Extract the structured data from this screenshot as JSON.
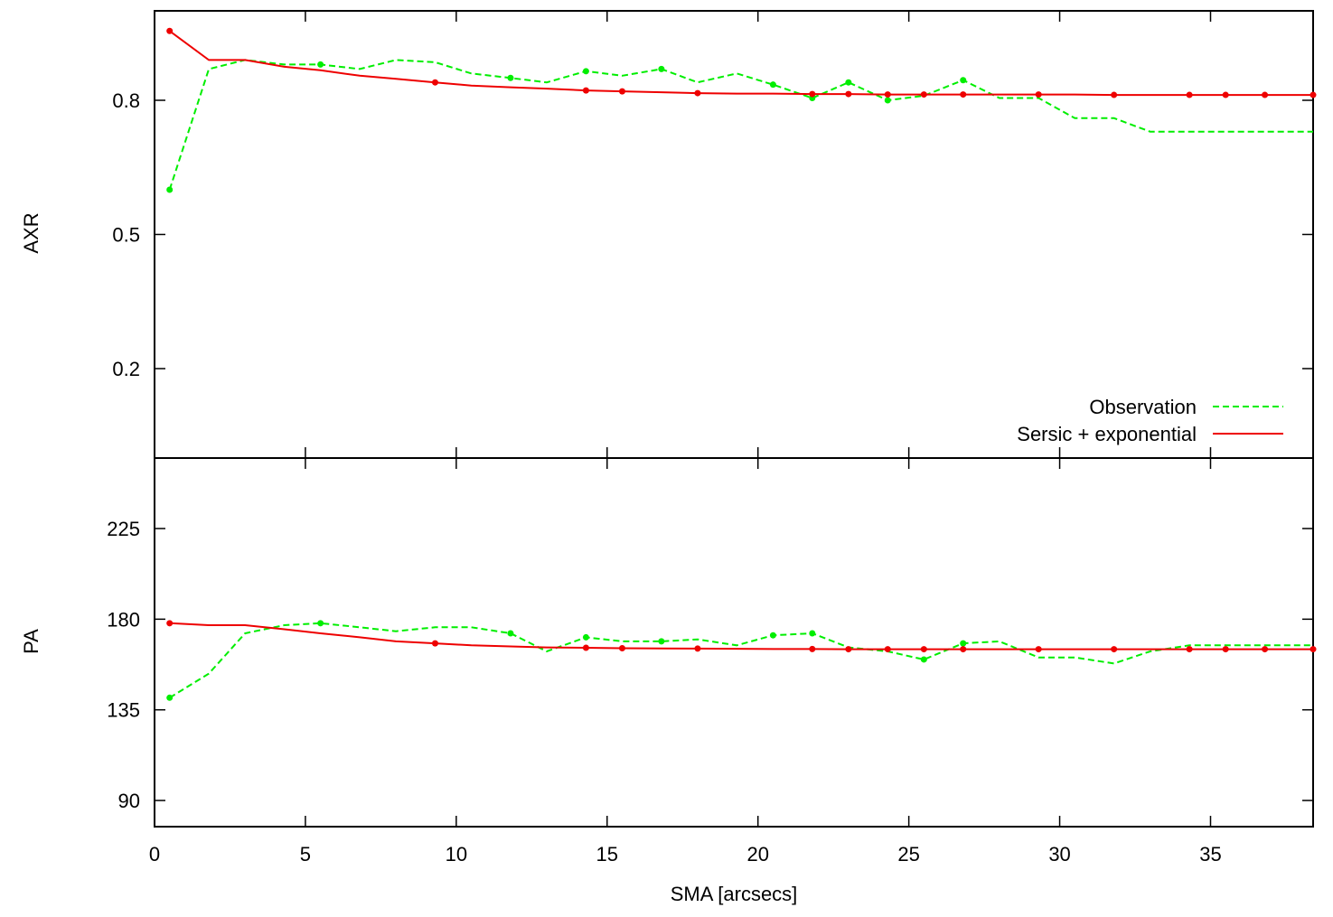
{
  "chart_data": [
    {
      "type": "line",
      "panel": "top",
      "xlabel": "",
      "ylabel": "AXR",
      "xlim": [
        0,
        38.4
      ],
      "ylim": [
        -0.0,
        1.0
      ],
      "yticks": [
        0.2,
        0.5,
        0.8
      ],
      "ytick_labels": [
        "0.2",
        "0.5",
        "0.8"
      ],
      "legend": {
        "position": "bottom-right",
        "entries": [
          "Observation",
          "Sersic + exponential"
        ]
      },
      "series": [
        {
          "name": "Observation",
          "color": "#00ee00",
          "style": "dashed",
          "x": [
            0.5,
            1.8,
            3.0,
            4.3,
            5.5,
            6.8,
            8.0,
            9.3,
            10.5,
            11.8,
            13.0,
            14.3,
            15.5,
            16.8,
            18.0,
            19.3,
            20.5,
            21.8,
            23.0,
            24.3,
            25.5,
            26.8,
            28.0,
            29.3,
            30.5,
            31.8,
            33.0,
            34.3,
            35.5,
            36.8,
            38.4
          ],
          "y": [
            0.6,
            0.87,
            0.89,
            0.88,
            0.88,
            0.87,
            0.89,
            0.885,
            0.86,
            0.85,
            0.84,
            0.865,
            0.855,
            0.87,
            0.84,
            0.86,
            0.835,
            0.805,
            0.84,
            0.8,
            0.81,
            0.845,
            0.805,
            0.805,
            0.76,
            0.76,
            0.73,
            0.73,
            0.73,
            0.73,
            0.73
          ],
          "marked_x": [
            0.5,
            5.5,
            11.8,
            14.3,
            16.8,
            20.5,
            21.8,
            23.0,
            24.3,
            26.8
          ]
        },
        {
          "name": "Sersic + exponential",
          "color": "#ee0000",
          "style": "solid",
          "x": [
            0.5,
            1.8,
            3.0,
            4.3,
            5.5,
            6.8,
            8.0,
            9.3,
            10.5,
            11.8,
            13.0,
            14.3,
            15.5,
            16.8,
            18.0,
            19.3,
            20.5,
            21.8,
            23.0,
            24.3,
            25.5,
            26.8,
            28.0,
            29.3,
            30.5,
            31.8,
            33.0,
            34.3,
            35.5,
            36.8,
            38.4
          ],
          "y": [
            0.955,
            0.89,
            0.89,
            0.875,
            0.867,
            0.855,
            0.848,
            0.84,
            0.833,
            0.829,
            0.826,
            0.822,
            0.82,
            0.818,
            0.816,
            0.815,
            0.815,
            0.814,
            0.814,
            0.813,
            0.813,
            0.813,
            0.813,
            0.813,
            0.813,
            0.812,
            0.812,
            0.812,
            0.812,
            0.812,
            0.812
          ],
          "marked_x": [
            0.5,
            9.3,
            14.3,
            15.5,
            18.0,
            21.8,
            23.0,
            24.3,
            25.5,
            26.8,
            29.3,
            31.8,
            34.3,
            35.5,
            36.8,
            38.4
          ]
        }
      ]
    },
    {
      "type": "line",
      "panel": "bottom",
      "xlabel": "SMA [arcsecs]",
      "ylabel": "PA",
      "xlim": [
        0,
        38.4
      ],
      "ylim": [
        77,
        260
      ],
      "xticks": [
        0,
        5,
        10,
        15,
        20,
        25,
        30,
        35
      ],
      "xtick_labels": [
        "0",
        "5",
        "10",
        "15",
        "20",
        "25",
        "30",
        "35"
      ],
      "yticks": [
        90,
        135,
        180,
        225
      ],
      "ytick_labels": [
        "90",
        "135",
        "180",
        "225"
      ],
      "series": [
        {
          "name": "Observation",
          "color": "#00ee00",
          "style": "dashed",
          "x": [
            0.5,
            1.8,
            3.0,
            4.3,
            5.5,
            6.8,
            8.0,
            9.3,
            10.5,
            11.8,
            13.0,
            14.3,
            15.5,
            16.8,
            18.0,
            19.3,
            20.5,
            21.8,
            23.0,
            24.3,
            25.5,
            26.8,
            28.0,
            29.3,
            30.5,
            31.8,
            33.0,
            34.3,
            35.5,
            36.8,
            38.4
          ],
          "y": [
            141,
            153,
            173,
            177,
            178,
            176,
            174,
            176,
            176,
            173,
            164,
            171,
            169,
            169,
            170,
            167,
            172,
            173,
            166,
            164,
            160,
            168,
            169,
            161,
            161,
            158,
            164,
            167,
            167,
            167,
            167
          ],
          "marked_x": [
            0.5,
            5.5,
            11.8,
            14.3,
            16.8,
            20.5,
            21.8,
            25.5,
            26.8
          ]
        },
        {
          "name": "Sersic + exponential",
          "color": "#ee0000",
          "style": "solid",
          "x": [
            0.5,
            1.8,
            3.0,
            4.3,
            5.5,
            6.8,
            8.0,
            9.3,
            10.5,
            11.8,
            13.0,
            14.3,
            15.5,
            16.8,
            18.0,
            19.3,
            20.5,
            21.8,
            23.0,
            24.3,
            25.5,
            26.8,
            28.0,
            29.3,
            30.5,
            31.8,
            33.0,
            34.3,
            35.5,
            36.8,
            38.4
          ],
          "y": [
            178,
            177,
            177,
            175,
            173,
            171,
            169,
            168,
            167,
            166.5,
            166,
            165.8,
            165.6,
            165.5,
            165.4,
            165.3,
            165.2,
            165.2,
            165.1,
            165.1,
            165.1,
            165.1,
            165.1,
            165.1,
            165.1,
            165.1,
            165.1,
            165.1,
            165.1,
            165.1,
            165.1
          ],
          "marked_x": [
            0.5,
            9.3,
            14.3,
            15.5,
            18.0,
            21.8,
            23.0,
            24.3,
            25.5,
            26.8,
            29.3,
            31.8,
            34.3,
            35.5,
            36.8,
            38.4
          ]
        }
      ]
    }
  ]
}
